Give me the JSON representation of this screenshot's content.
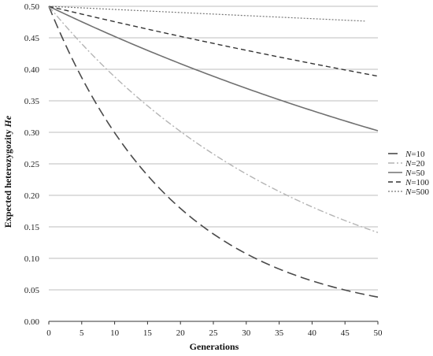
{
  "chart_data": {
    "type": "line",
    "title": "",
    "xlabel": "Generations",
    "ylabel": "Expected heterozygozity He",
    "ylabel_parts": {
      "text": "Expected heterozygozity ",
      "symbol": "He"
    },
    "xlim": [
      0,
      50
    ],
    "ylim": [
      0,
      0.5
    ],
    "xticks": [
      "0",
      "5",
      "10",
      "15",
      "20",
      "25",
      "30",
      "35",
      "40",
      "45",
      "50"
    ],
    "yticks": [
      "0.00",
      "0.05",
      "0.10",
      "0.15",
      "0.20",
      "0.25",
      "0.30",
      "0.35",
      "0.40",
      "0.45",
      "0.50"
    ],
    "grid": "horizontal",
    "legend_position": "right",
    "initial_value": 0.5,
    "series": [
      {
        "name": "N=10",
        "label_prefix": "N",
        "label_value": "=10",
        "N": 10,
        "x_end": 50,
        "color": "#4a4a4a",
        "dash": "12,6",
        "width": 1.6
      },
      {
        "name": "N=20",
        "label_prefix": "N",
        "label_value": "=20",
        "N": 20,
        "x_end": 50,
        "color": "#b4b4b4",
        "dash": "8,3,2,3",
        "width": 1.4
      },
      {
        "name": "N=50",
        "label_prefix": "N",
        "label_value": "=50",
        "N": 50,
        "x_end": 50,
        "color": "#707070",
        "dash": "",
        "width": 1.6
      },
      {
        "name": "N=100",
        "label_prefix": "N",
        "label_value": "=100",
        "N": 100,
        "x_end": 50,
        "color": "#333333",
        "dash": "6,4",
        "width": 1.4
      },
      {
        "name": "N=500",
        "label_prefix": "N",
        "label_value": "=500",
        "N": 500,
        "x_end": 48,
        "color": "#777777",
        "dash": "2,2",
        "width": 1.2
      }
    ]
  }
}
